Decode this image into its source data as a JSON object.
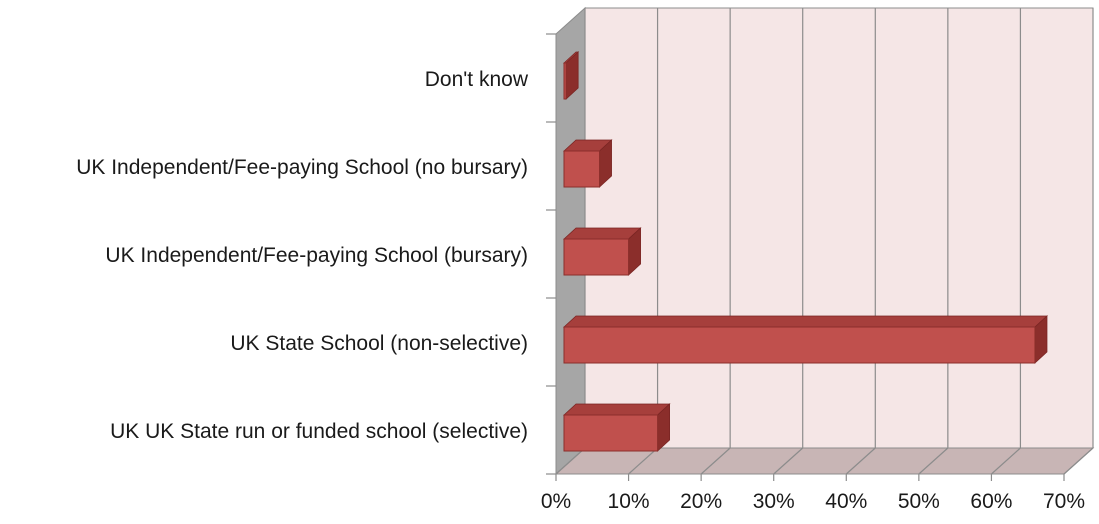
{
  "chart_data": {
    "type": "bar",
    "orientation": "horizontal",
    "style": "3d-clustered",
    "categories": [
      "UK UK State run or funded school (selective)",
      "UK State School (non-selective)",
      "UK Independent/Fee-paying School (bursary)",
      "UK Independent/Fee-paying School (no bursary)",
      "Don't know"
    ],
    "values": [
      14.0,
      66.0,
      10.0,
      6.0,
      1.4
    ],
    "xlim": [
      0,
      70
    ],
    "xticks": [
      "0%",
      "10%",
      "20%",
      "30%",
      "40%",
      "50%",
      "60%",
      "70%"
    ],
    "title": "",
    "xlabel": "",
    "ylabel": "",
    "grid": true,
    "legend": "none",
    "colors": {
      "bar_front": "#c0504d",
      "bar_top": "#a63f3c",
      "bar_side": "#8b2e2b",
      "back_wall": "#f5e6e6",
      "side_wall": "#a6a6a6",
      "floor": "#c8b5b5",
      "grid": "#8c8c8c"
    }
  }
}
